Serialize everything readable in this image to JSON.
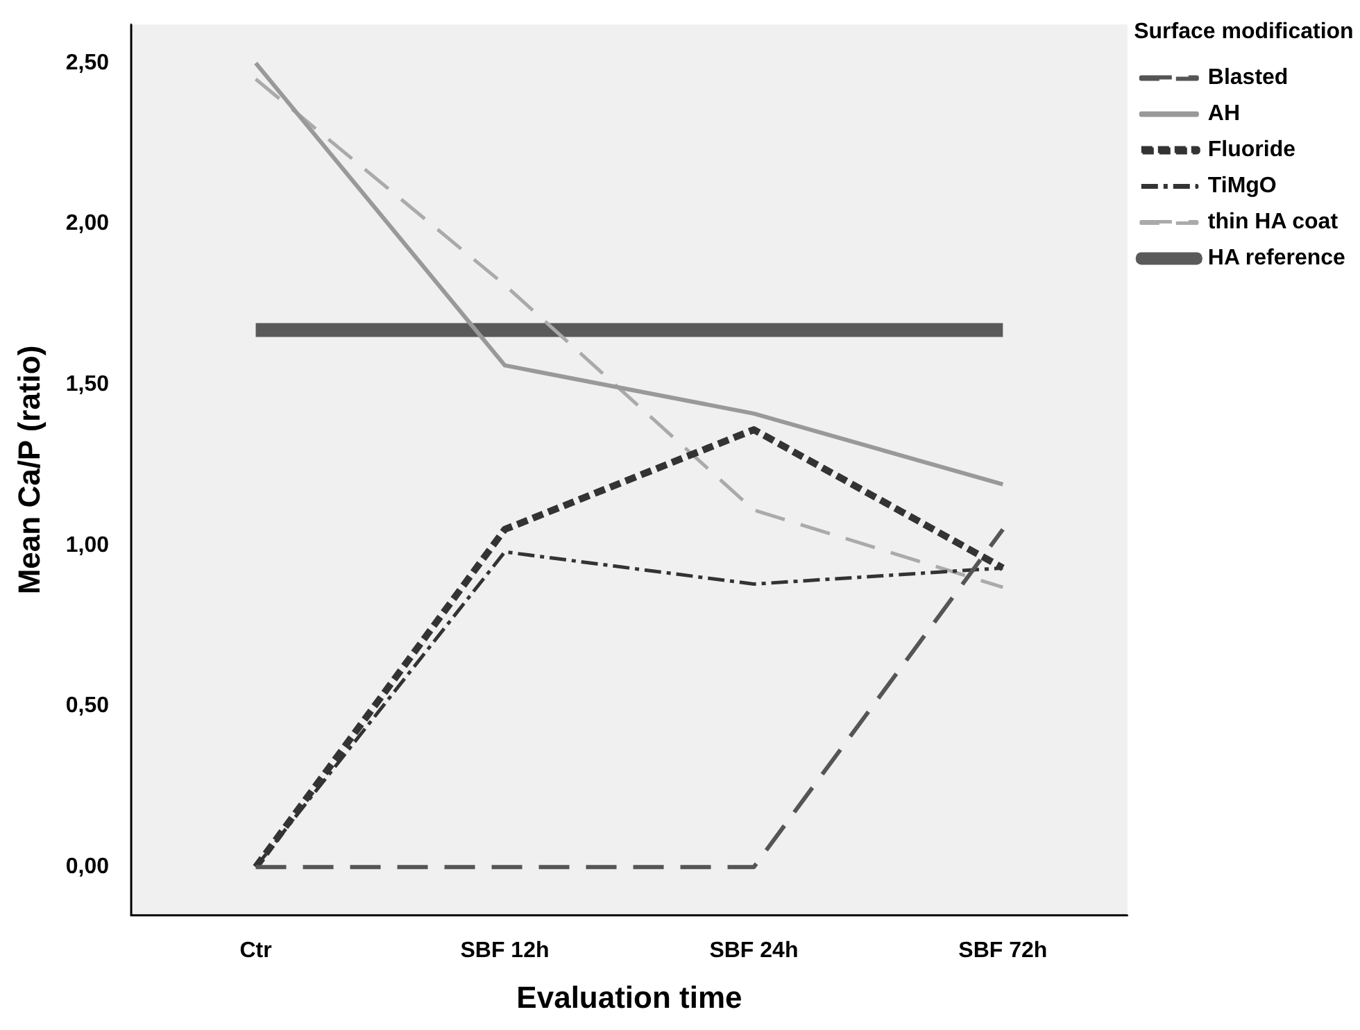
{
  "chart_data": {
    "type": "line",
    "xlabel": "Evaluation time",
    "ylabel": "Mean Ca/P (ratio)",
    "legend_title": "Surface modification",
    "legend": "top right",
    "grid": false,
    "marker": "none",
    "categories": [
      "Ctr",
      "SBF 12h",
      "SBF 24h",
      "SBF 72h"
    ],
    "ylim": [
      -0.15,
      2.62
    ],
    "yticks": [
      {
        "value": 0,
        "label": "0,00"
      },
      {
        "value": 0.5,
        "label": "0,50"
      },
      {
        "value": 1,
        "label": "1,00"
      },
      {
        "value": 1.5,
        "label": "1,50"
      },
      {
        "value": 2,
        "label": "2,00"
      },
      {
        "value": 2.5,
        "label": "2,50"
      }
    ],
    "series": [
      {
        "name": "Blasted",
        "color": "#555555",
        "line_style": "dashed",
        "values": [
          0,
          0,
          0,
          1.05
        ]
      },
      {
        "name": "AH",
        "color": "#999999",
        "line_style": "solid",
        "values": [
          2.5,
          1.56,
          1.41,
          1.19
        ]
      },
      {
        "name": "Fluoride",
        "color": "#333333",
        "line_style": "dashed",
        "values": [
          0,
          1.05,
          1.36,
          0.93
        ]
      },
      {
        "name": "TiMgO",
        "color": "#333333",
        "line_style": "dashed",
        "values": [
          0,
          0.98,
          0.88,
          0.93
        ]
      },
      {
        "name": "thin HA coat",
        "color": "#aaaaaa",
        "line_style": "dashed",
        "values": [
          2.45,
          1.81,
          1.11,
          0.87
        ]
      },
      {
        "name": "HA reference",
        "color": "#5a5a5a",
        "line_style": "solid",
        "values": [
          1.67,
          1.67,
          1.67,
          1.67
        ]
      }
    ]
  }
}
